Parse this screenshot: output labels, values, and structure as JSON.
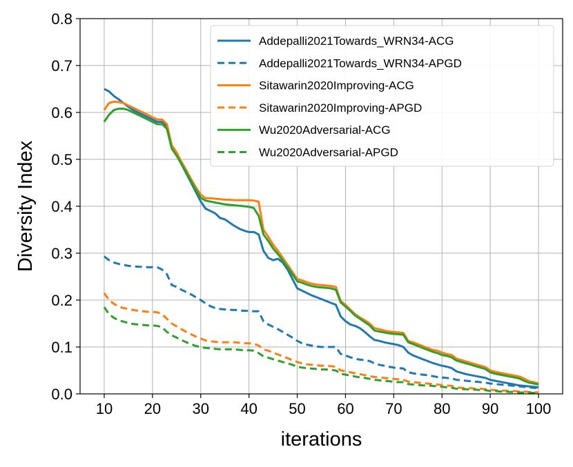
{
  "chart_data": {
    "type": "line",
    "title": "",
    "xlabel": "iterations",
    "ylabel": "Diversity Index",
    "xlim": [
      5,
      105
    ],
    "ylim": [
      0.0,
      0.8
    ],
    "xticks": [
      "10",
      "20",
      "30",
      "40",
      "50",
      "60",
      "70",
      "80",
      "90",
      "100"
    ],
    "yticks": [
      "0.0",
      "0.1",
      "0.2",
      "0.3",
      "0.4",
      "0.5",
      "0.6",
      "0.7",
      "0.8"
    ],
    "grid": true,
    "legend_position": "top-right",
    "x": [
      10,
      11,
      12,
      13,
      14,
      15,
      16,
      17,
      18,
      19,
      20,
      21,
      22,
      23,
      24,
      25,
      26,
      27,
      28,
      29,
      30,
      31,
      32,
      33,
      34,
      35,
      36,
      37,
      38,
      39,
      40,
      41,
      42,
      43,
      44,
      45,
      46,
      47,
      48,
      49,
      50,
      51,
      52,
      53,
      54,
      55,
      56,
      57,
      58,
      59,
      60,
      61,
      62,
      63,
      64,
      65,
      66,
      67,
      68,
      69,
      70,
      71,
      72,
      73,
      74,
      75,
      76,
      77,
      78,
      79,
      80,
      81,
      82,
      83,
      84,
      85,
      86,
      87,
      88,
      89,
      90,
      91,
      92,
      93,
      94,
      95,
      96,
      97,
      98,
      99,
      100
    ],
    "series": [
      {
        "name": "Addepalli2021Towards_WRN34-ACG",
        "color": "#1f77b4",
        "style": "solid",
        "values": [
          0.65,
          0.645,
          0.635,
          0.628,
          0.62,
          0.612,
          0.605,
          0.6,
          0.595,
          0.59,
          0.585,
          0.58,
          0.58,
          0.57,
          0.525,
          0.51,
          0.49,
          0.47,
          0.45,
          0.43,
          0.41,
          0.395,
          0.39,
          0.385,
          0.375,
          0.372,
          0.365,
          0.358,
          0.352,
          0.348,
          0.345,
          0.345,
          0.34,
          0.305,
          0.29,
          0.285,
          0.288,
          0.28,
          0.265,
          0.245,
          0.225,
          0.22,
          0.215,
          0.21,
          0.206,
          0.202,
          0.198,
          0.194,
          0.19,
          0.165,
          0.155,
          0.148,
          0.145,
          0.14,
          0.132,
          0.123,
          0.115,
          0.113,
          0.11,
          0.108,
          0.106,
          0.104,
          0.1,
          0.088,
          0.082,
          0.078,
          0.074,
          0.07,
          0.066,
          0.063,
          0.06,
          0.058,
          0.055,
          0.048,
          0.045,
          0.042,
          0.04,
          0.038,
          0.036,
          0.034,
          0.03,
          0.028,
          0.026,
          0.024,
          0.022,
          0.02,
          0.018,
          0.017,
          0.016,
          0.015,
          0.014
        ]
      },
      {
        "name": "Addepalli2021Towards_WRN34-APGD",
        "color": "#1f77b4",
        "style": "dashed",
        "values": [
          0.293,
          0.285,
          0.28,
          0.277,
          0.275,
          0.273,
          0.272,
          0.271,
          0.271,
          0.27,
          0.27,
          0.27,
          0.265,
          0.255,
          0.232,
          0.228,
          0.222,
          0.217,
          0.212,
          0.206,
          0.2,
          0.193,
          0.187,
          0.183,
          0.181,
          0.18,
          0.179,
          0.179,
          0.178,
          0.177,
          0.177,
          0.176,
          0.176,
          0.155,
          0.148,
          0.143,
          0.138,
          0.132,
          0.126,
          0.12,
          0.113,
          0.108,
          0.105,
          0.103,
          0.101,
          0.1,
          0.1,
          0.1,
          0.1,
          0.085,
          0.082,
          0.078,
          0.075,
          0.073,
          0.072,
          0.07,
          0.065,
          0.062,
          0.06,
          0.058,
          0.056,
          0.055,
          0.054,
          0.046,
          0.044,
          0.042,
          0.041,
          0.04,
          0.038,
          0.036,
          0.035,
          0.034,
          0.033,
          0.03,
          0.029,
          0.028,
          0.027,
          0.026,
          0.025,
          0.024,
          0.022,
          0.021,
          0.02,
          0.019,
          0.018,
          0.017,
          0.016,
          0.015,
          0.014,
          0.013,
          0.012
        ]
      },
      {
        "name": "Sitawarin2020Improving-ACG",
        "color": "#ff7f0e",
        "style": "solid",
        "values": [
          0.605,
          0.62,
          0.623,
          0.622,
          0.62,
          0.615,
          0.61,
          0.605,
          0.6,
          0.595,
          0.59,
          0.585,
          0.585,
          0.575,
          0.53,
          0.515,
          0.495,
          0.477,
          0.458,
          0.44,
          0.425,
          0.417,
          0.417,
          0.416,
          0.415,
          0.414,
          0.414,
          0.413,
          0.413,
          0.413,
          0.413,
          0.412,
          0.41,
          0.35,
          0.335,
          0.318,
          0.305,
          0.29,
          0.275,
          0.26,
          0.245,
          0.242,
          0.238,
          0.235,
          0.233,
          0.232,
          0.231,
          0.23,
          0.228,
          0.198,
          0.19,
          0.18,
          0.17,
          0.163,
          0.157,
          0.15,
          0.14,
          0.138,
          0.135,
          0.133,
          0.132,
          0.131,
          0.13,
          0.113,
          0.11,
          0.106,
          0.102,
          0.098,
          0.094,
          0.092,
          0.088,
          0.085,
          0.083,
          0.075,
          0.072,
          0.069,
          0.066,
          0.063,
          0.06,
          0.057,
          0.05,
          0.047,
          0.045,
          0.043,
          0.041,
          0.039,
          0.037,
          0.033,
          0.027,
          0.025,
          0.022
        ]
      },
      {
        "name": "Sitawarin2020Improving-APGD",
        "color": "#ff7f0e",
        "style": "dashed",
        "values": [
          0.215,
          0.2,
          0.192,
          0.186,
          0.183,
          0.181,
          0.179,
          0.177,
          0.176,
          0.175,
          0.175,
          0.174,
          0.17,
          0.16,
          0.15,
          0.144,
          0.138,
          0.132,
          0.127,
          0.122,
          0.118,
          0.114,
          0.112,
          0.111,
          0.11,
          0.11,
          0.11,
          0.11,
          0.109,
          0.108,
          0.108,
          0.107,
          0.103,
          0.095,
          0.092,
          0.088,
          0.084,
          0.08,
          0.076,
          0.072,
          0.068,
          0.065,
          0.063,
          0.062,
          0.061,
          0.06,
          0.06,
          0.059,
          0.058,
          0.05,
          0.048,
          0.046,
          0.044,
          0.042,
          0.04,
          0.038,
          0.036,
          0.035,
          0.034,
          0.033,
          0.032,
          0.031,
          0.03,
          0.026,
          0.025,
          0.024,
          0.023,
          0.022,
          0.021,
          0.02,
          0.019,
          0.018,
          0.017,
          0.014,
          0.013,
          0.012,
          0.012,
          0.011,
          0.011,
          0.01,
          0.009,
          0.008,
          0.007,
          0.007,
          0.006,
          0.006,
          0.005,
          0.005,
          0.004,
          0.004,
          0.003
        ]
      },
      {
        "name": "Wu2020Adversarial-ACG",
        "color": "#2ca02c",
        "style": "solid",
        "values": [
          0.58,
          0.595,
          0.605,
          0.608,
          0.608,
          0.605,
          0.6,
          0.595,
          0.59,
          0.585,
          0.58,
          0.575,
          0.575,
          0.565,
          0.523,
          0.508,
          0.49,
          0.472,
          0.453,
          0.435,
          0.418,
          0.412,
          0.41,
          0.408,
          0.406,
          0.404,
          0.403,
          0.402,
          0.401,
          0.4,
          0.399,
          0.396,
          0.38,
          0.34,
          0.326,
          0.31,
          0.298,
          0.284,
          0.27,
          0.255,
          0.24,
          0.237,
          0.233,
          0.23,
          0.228,
          0.227,
          0.226,
          0.225,
          0.222,
          0.195,
          0.186,
          0.177,
          0.167,
          0.16,
          0.153,
          0.146,
          0.135,
          0.133,
          0.131,
          0.129,
          0.128,
          0.127,
          0.126,
          0.11,
          0.106,
          0.102,
          0.098,
          0.094,
          0.09,
          0.087,
          0.083,
          0.081,
          0.078,
          0.071,
          0.068,
          0.065,
          0.062,
          0.059,
          0.056,
          0.053,
          0.046,
          0.043,
          0.041,
          0.039,
          0.037,
          0.035,
          0.033,
          0.028,
          0.024,
          0.022,
          0.02
        ]
      },
      {
        "name": "Wu2020Adversarial-APGD",
        "color": "#2ca02c",
        "style": "dashed",
        "values": [
          0.185,
          0.17,
          0.162,
          0.157,
          0.154,
          0.151,
          0.149,
          0.148,
          0.147,
          0.146,
          0.146,
          0.145,
          0.142,
          0.132,
          0.125,
          0.12,
          0.115,
          0.11,
          0.106,
          0.102,
          0.1,
          0.098,
          0.097,
          0.096,
          0.095,
          0.095,
          0.095,
          0.095,
          0.094,
          0.093,
          0.093,
          0.092,
          0.087,
          0.08,
          0.077,
          0.074,
          0.071,
          0.068,
          0.065,
          0.062,
          0.058,
          0.056,
          0.055,
          0.054,
          0.053,
          0.052,
          0.052,
          0.051,
          0.05,
          0.043,
          0.041,
          0.039,
          0.037,
          0.035,
          0.034,
          0.032,
          0.03,
          0.029,
          0.028,
          0.027,
          0.026,
          0.025,
          0.025,
          0.021,
          0.02,
          0.019,
          0.018,
          0.018,
          0.017,
          0.016,
          0.015,
          0.014,
          0.013,
          0.011,
          0.01,
          0.01,
          0.009,
          0.009,
          0.008,
          0.008,
          0.006,
          0.006,
          0.005,
          0.005,
          0.004,
          0.004,
          0.003,
          0.003,
          0.003,
          0.002,
          0.002
        ]
      }
    ]
  }
}
